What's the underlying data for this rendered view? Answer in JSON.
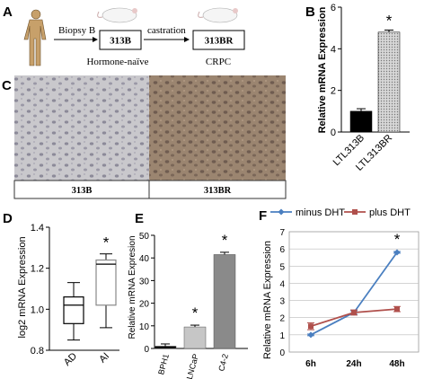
{
  "panels": {
    "A": {
      "letter": "A",
      "arrow1_label": "Biopsy B",
      "arrow2_label": "castration",
      "box1": "313B",
      "box2": "313BR",
      "caption1": "Hormone-naïve",
      "caption2": "CRPC"
    },
    "B": {
      "letter": "B"
    },
    "C": {
      "letter": "C",
      "label_left": "313B",
      "label_right": "313BR"
    },
    "D": {
      "letter": "D"
    },
    "E": {
      "letter": "E"
    },
    "F": {
      "letter": "F"
    }
  },
  "colors": {
    "blue": "#4a7fc0",
    "red": "#b0504c",
    "bar_dark": "#000000",
    "bar_gray": "#8a8a8a",
    "bar_light": "#c6c6c6"
  },
  "chart_data": [
    {
      "panel": "B",
      "type": "bar",
      "categories": [
        "LTL313B",
        "LTL313BR"
      ],
      "values": [
        1.0,
        4.8
      ],
      "errors": [
        0.12,
        0.1
      ],
      "bar_styles": [
        "solid-black",
        "hatched-gray"
      ],
      "ylabel": "Relative mRNA Expression",
      "ylim": [
        0,
        6
      ],
      "yticks": [
        0,
        2,
        4,
        6
      ],
      "annotations": [
        "*"
      ]
    },
    {
      "panel": "D",
      "type": "box",
      "categories": [
        "AD",
        "AI"
      ],
      "boxes": [
        {
          "min": 0.85,
          "q1": 0.93,
          "median": 1.02,
          "q3": 1.06,
          "max": 1.13
        },
        {
          "min": 0.91,
          "q1": 1.02,
          "median": 1.22,
          "q3": 1.24,
          "max": 1.27
        }
      ],
      "ylabel": "log2 mRNA Expression",
      "ylim": [
        0.8,
        1.4
      ],
      "yticks": [
        "0.8",
        "1.0",
        "1.2",
        "1.4"
      ],
      "annotations": [
        "*"
      ]
    },
    {
      "panel": "E",
      "type": "bar",
      "categories": [
        "BPH1",
        "LNCaP",
        "C4-2"
      ],
      "values": [
        1.0,
        9.5,
        41.5
      ],
      "errors": [
        1.0,
        0.8,
        1.0
      ],
      "ylabel": "Relative mRNA Expresion",
      "ylim": [
        0,
        50
      ],
      "yticks": [
        0,
        10,
        20,
        30,
        40,
        50
      ],
      "annotations": [
        "*",
        "*"
      ]
    },
    {
      "panel": "F",
      "type": "line",
      "x": [
        "6h",
        "24h",
        "48h"
      ],
      "series": [
        {
          "name": "minus DHT",
          "values": [
            1.0,
            2.3,
            5.8
          ]
        },
        {
          "name": "plus DHT",
          "values": [
            1.5,
            2.3,
            2.5
          ]
        }
      ],
      "errors": [
        [
          0.05,
          0.1,
          0.05
        ],
        [
          0.2,
          0.15,
          0.15
        ]
      ],
      "ylabel": "Relative mRNA Expression",
      "ylim": [
        0,
        7
      ],
      "yticks": [
        0,
        1,
        2,
        3,
        4,
        5,
        6,
        7
      ],
      "grid": true,
      "legend": "top",
      "annotations": [
        "*"
      ]
    }
  ]
}
